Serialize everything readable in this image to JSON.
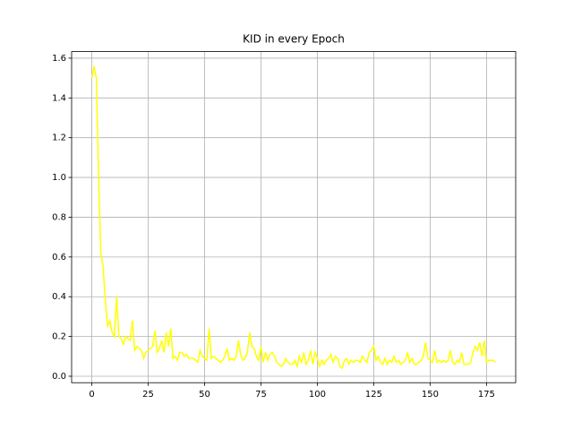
{
  "chart_data": {
    "type": "line",
    "title": "KID in every Epoch",
    "color": "#ffff00",
    "grid": true,
    "xlim": [
      -8.95,
      187.95
    ],
    "ylim": [
      -0.0325,
      1.633
    ],
    "xticks": [
      0,
      25,
      50,
      75,
      100,
      125,
      150,
      175
    ],
    "yticks": [
      {
        "value": 0,
        "label": "0.0"
      },
      0.2,
      0.4,
      0.6,
      0.8,
      {
        "value": 1,
        "label": "1.0"
      },
      1.2,
      1.4,
      1.6
    ],
    "x": [
      0,
      1,
      2,
      3,
      4,
      5,
      6,
      7,
      8,
      9,
      10,
      11,
      12,
      13,
      14,
      15,
      16,
      17,
      18,
      19,
      20,
      21,
      22,
      23,
      24,
      25,
      26,
      27,
      28,
      29,
      30,
      31,
      32,
      33,
      34,
      35,
      36,
      37,
      38,
      39,
      40,
      41,
      42,
      43,
      44,
      45,
      46,
      47,
      48,
      49,
      50,
      51,
      52,
      53,
      54,
      55,
      56,
      57,
      58,
      59,
      60,
      61,
      62,
      63,
      64,
      65,
      66,
      67,
      68,
      69,
      70,
      71,
      72,
      73,
      74,
      75,
      76,
      77,
      78,
      79,
      80,
      81,
      82,
      83,
      84,
      85,
      86,
      87,
      88,
      89,
      90,
      91,
      92,
      93,
      94,
      95,
      96,
      97,
      98,
      99,
      100,
      101,
      102,
      103,
      104,
      105,
      106,
      107,
      108,
      109,
      110,
      111,
      112,
      113,
      114,
      115,
      116,
      117,
      118,
      119,
      120,
      121,
      122,
      123,
      124,
      125,
      126,
      127,
      128,
      129,
      130,
      131,
      132,
      133,
      134,
      135,
      136,
      137,
      138,
      139,
      140,
      141,
      142,
      143,
      144,
      145,
      146,
      147,
      148,
      149,
      150,
      151,
      152,
      153,
      154,
      155,
      156,
      157,
      158,
      159,
      160,
      161,
      162,
      163,
      164,
      165,
      166,
      167,
      168,
      169,
      170,
      171,
      172,
      173,
      174,
      175,
      176,
      177,
      178,
      179
    ],
    "values": [
      1.5,
      1.56,
      1.5,
      1.0,
      0.62,
      0.55,
      0.38,
      0.25,
      0.28,
      0.22,
      0.2,
      0.4,
      0.2,
      0.19,
      0.16,
      0.2,
      0.19,
      0.18,
      0.28,
      0.13,
      0.15,
      0.14,
      0.13,
      0.09,
      0.12,
      0.13,
      0.14,
      0.15,
      0.23,
      0.12,
      0.14,
      0.18,
      0.12,
      0.22,
      0.15,
      0.24,
      0.09,
      0.1,
      0.08,
      0.12,
      0.12,
      0.1,
      0.11,
      0.09,
      0.09,
      0.09,
      0.08,
      0.07,
      0.13,
      0.1,
      0.09,
      0.08,
      0.24,
      0.09,
      0.1,
      0.09,
      0.08,
      0.07,
      0.08,
      0.1,
      0.14,
      0.08,
      0.09,
      0.08,
      0.1,
      0.18,
      0.11,
      0.08,
      0.09,
      0.12,
      0.22,
      0.15,
      0.14,
      0.1,
      0.08,
      0.15,
      0.07,
      0.12,
      0.08,
      0.11,
      0.12,
      0.1,
      0.07,
      0.06,
      0.05,
      0.06,
      0.09,
      0.07,
      0.06,
      0.06,
      0.08,
      0.05,
      0.1,
      0.07,
      0.12,
      0.06,
      0.08,
      0.13,
      0.06,
      0.12,
      0.09,
      0.05,
      0.08,
      0.06,
      0.08,
      0.09,
      0.11,
      0.07,
      0.1,
      0.09,
      0.05,
      0.04,
      0.08,
      0.09,
      0.06,
      0.08,
      0.07,
      0.08,
      0.08,
      0.07,
      0.1,
      0.08,
      0.07,
      0.12,
      0.13,
      0.15,
      0.08,
      0.1,
      0.07,
      0.06,
      0.09,
      0.06,
      0.08,
      0.07,
      0.1,
      0.07,
      0.08,
      0.06,
      0.07,
      0.08,
      0.12,
      0.07,
      0.09,
      0.06,
      0.06,
      0.07,
      0.08,
      0.1,
      0.17,
      0.09,
      0.08,
      0.07,
      0.13,
      0.07,
      0.08,
      0.07,
      0.08,
      0.07,
      0.08,
      0.13,
      0.07,
      0.06,
      0.08,
      0.07,
      0.12,
      0.06,
      0.06,
      0.06,
      0.07,
      0.12,
      0.15,
      0.13,
      0.17,
      0.1,
      0.18,
      0.07,
      0.08,
      0.08,
      0.08,
      0.07
    ]
  }
}
